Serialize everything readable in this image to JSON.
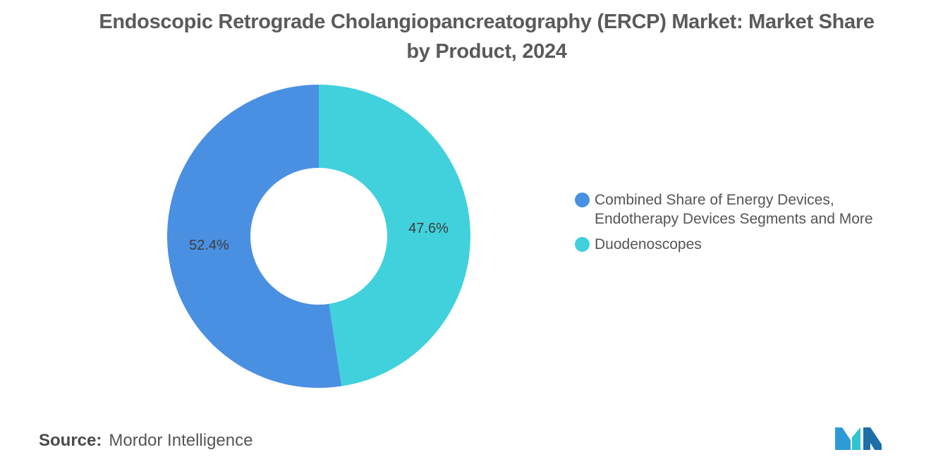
{
  "title": "Endoscopic Retrograde Cholangiopancreatography (ERCP) Market: Market Share by Product, 2024",
  "source": {
    "key": "Source:",
    "value": "Mordor Intelligence"
  },
  "chart_data": {
    "type": "pie",
    "variant": "donut",
    "title": "Endoscopic Retrograde Cholangiopancreatography (ERCP) Market: Market Share by Product, 2024",
    "unit": "%",
    "legend_position": "right",
    "series": [
      {
        "name": "Combined Share of Energy Devices, Endotherapy Devices Segments and More",
        "value": 52.4,
        "label": "52.4%",
        "color": "#4a90e2"
      },
      {
        "name": "Duodenoscopes",
        "value": 47.6,
        "label": "47.6%",
        "color": "#40d1dc"
      }
    ]
  },
  "logo": {
    "name": "mordor-intelligence-logo",
    "colors": [
      "#2e9bd6",
      "#2fc4cf",
      "#1d6fa8"
    ]
  }
}
